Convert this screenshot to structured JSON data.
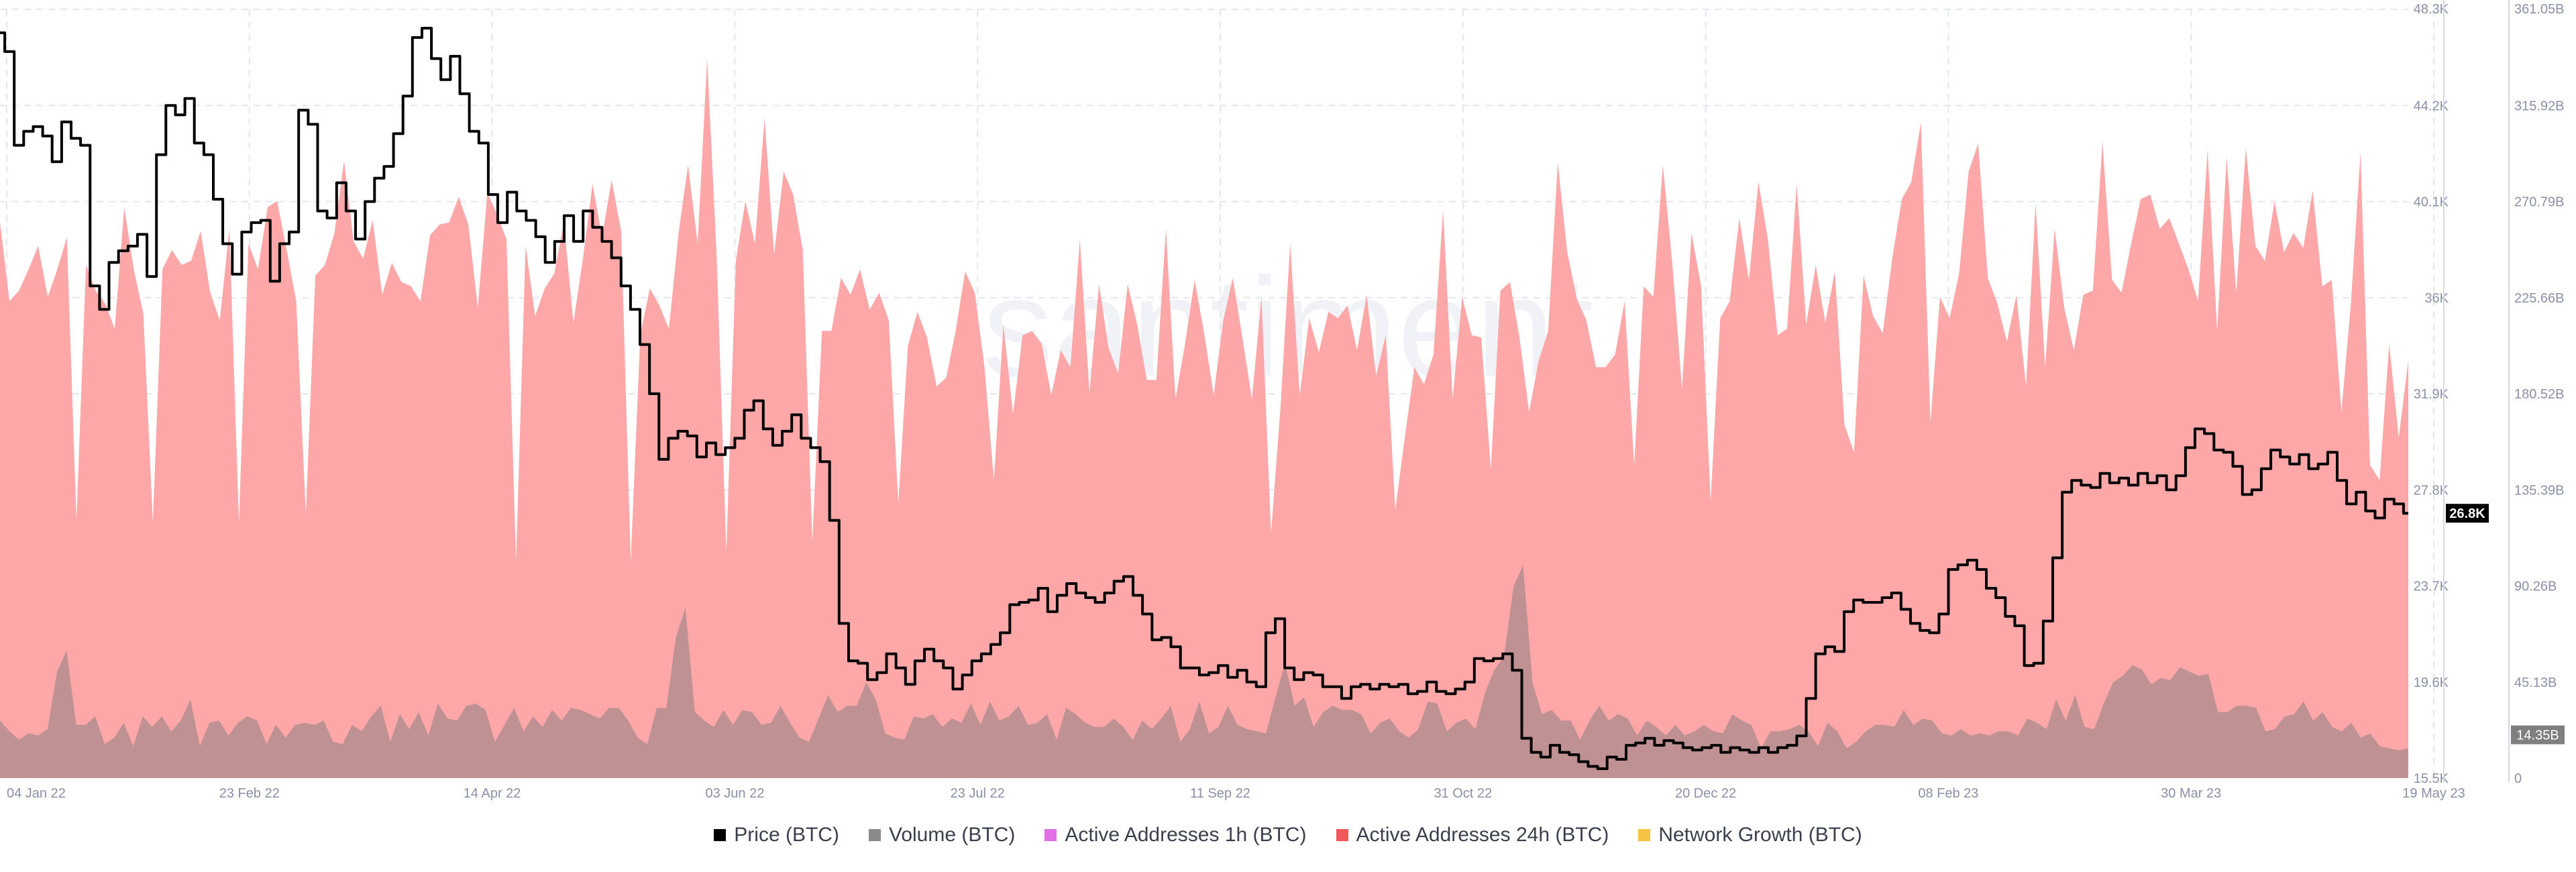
{
  "watermark": "santiment",
  "legend": [
    {
      "label": "Price (BTC)",
      "color": "#000000"
    },
    {
      "label": "Volume (BTC)",
      "color": "#8b8b8b"
    },
    {
      "label": "Active Addresses 1h (BTC)",
      "color": "#e26fe8"
    },
    {
      "label": "Active Addresses 24h (BTC)",
      "color": "#f0575a"
    },
    {
      "label": "Network Growth (BTC)",
      "color": "#f6c343"
    }
  ],
  "chart_data": {
    "type": "line",
    "x_ticks": [
      "04 Jan 22",
      "23 Feb 22",
      "14 Apr 22",
      "03 Jun 22",
      "23 Jul 22",
      "11 Sep 22",
      "31 Oct 22",
      "20 Dec 22",
      "08 Feb 23",
      "30 Mar 23",
      "19 May 23"
    ],
    "price_axis": {
      "ticks": [
        "48.3K",
        "44.2K",
        "40.1K",
        "36K",
        "31.9K",
        "27.8K",
        "23.7K",
        "19.6K",
        "15.5K"
      ],
      "min": 15.5,
      "max": 48.3,
      "unit": "K USD"
    },
    "volume_axis": {
      "ticks": [
        "361.05B",
        "315.92B",
        "270.79B",
        "225.66B",
        "180.52B",
        "135.39B",
        "90.26B",
        "45.13B",
        "0"
      ],
      "min": 0,
      "max": 361.05,
      "unit": "B"
    },
    "last_price_label": "26.8K",
    "last_volume_label": "14.35B",
    "series": [
      {
        "name": "Price (BTC)",
        "axis": "left",
        "x_start": "2022-01-01",
        "x_end": "2023-05-19",
        "values": [
          47.3,
          46.5,
          42.5,
          43.1,
          43.3,
          42.9,
          41.8,
          43.5,
          42.8,
          42.5,
          36.5,
          35.5,
          37.5,
          38.0,
          38.2,
          38.7,
          36.9,
          42.1,
          44.2,
          43.8,
          44.5,
          42.6,
          42.1,
          40.2,
          38.3,
          37.0,
          38.8,
          39.2,
          39.3,
          36.7,
          38.3,
          38.8,
          44.0,
          43.4,
          39.7,
          39.4,
          40.9,
          39.7,
          38.5,
          40.1,
          41.1,
          41.6,
          43.0,
          44.6,
          47.1,
          47.5,
          46.2,
          45.3,
          46.3,
          44.7,
          43.1,
          42.6,
          40.4,
          39.2,
          40.5,
          39.7,
          39.3,
          38.6,
          37.5,
          38.4,
          39.5,
          38.4,
          39.7,
          39.0,
          38.4,
          37.7,
          36.5,
          35.5,
          34.0,
          31.9,
          29.1,
          30.0,
          30.3,
          30.1,
          29.2,
          29.8,
          29.3,
          29.6,
          30.0,
          31.2,
          31.6,
          30.4,
          29.7,
          30.3,
          31.0,
          30.0,
          29.6,
          29.0,
          26.5,
          22.1,
          20.5,
          20.4,
          19.7,
          20.0,
          20.8,
          20.2,
          19.5,
          20.5,
          21.0,
          20.5,
          20.2,
          19.3,
          19.9,
          20.5,
          20.8,
          21.2,
          21.7,
          22.9,
          23.0,
          23.1,
          23.6,
          22.6,
          23.3,
          23.8,
          23.4,
          23.2,
          23.0,
          23.4,
          23.9,
          24.1,
          23.3,
          22.5,
          21.4,
          21.5,
          21.1,
          20.2,
          20.2,
          19.9,
          20.0,
          20.3,
          19.8,
          20.1,
          19.6,
          19.4,
          21.7,
          22.3,
          20.2,
          19.7,
          20.0,
          19.9,
          19.4,
          19.4,
          18.9,
          19.4,
          19.5,
          19.3,
          19.5,
          19.4,
          19.5,
          19.1,
          19.2,
          19.6,
          19.2,
          19.1,
          19.3,
          19.6,
          20.6,
          20.5,
          20.6,
          20.8,
          20.1,
          17.2,
          16.6,
          16.4,
          16.9,
          16.6,
          16.5,
          16.2,
          16.0,
          15.9,
          16.4,
          16.3,
          16.9,
          17.0,
          17.2,
          16.9,
          17.1,
          17.0,
          16.8,
          16.7,
          16.8,
          16.9,
          16.6,
          16.8,
          16.7,
          16.6,
          16.8,
          16.6,
          16.8,
          16.9,
          17.3,
          18.9,
          20.8,
          21.1,
          20.9,
          22.6,
          23.1,
          23.0,
          23.0,
          23.2,
          23.4,
          22.7,
          22.1,
          21.8,
          21.7,
          22.5,
          24.4,
          24.6,
          24.8,
          24.4,
          23.6,
          23.2,
          22.4,
          22.0,
          20.3,
          20.4,
          22.2,
          24.9,
          27.7,
          28.2,
          28.0,
          27.9,
          28.5,
          28.1,
          28.3,
          28.0,
          28.5,
          28.1,
          28.4,
          27.8,
          28.4,
          29.6,
          30.4,
          30.2,
          29.5,
          29.4,
          28.8,
          27.6,
          27.8,
          28.7,
          29.5,
          29.2,
          28.9,
          29.3,
          28.7,
          28.9,
          29.4,
          28.2,
          27.2,
          27.7,
          26.9,
          26.6,
          27.4,
          27.2,
          26.8
        ]
      },
      {
        "name": "Active Addresses 24h (BTC)",
        "axis": "right",
        "x_start": "2022-01-01",
        "x_end": "2023-05-19",
        "values": [
          261,
          224,
          229,
          239,
          250,
          226,
          239,
          254,
          121,
          241,
          229,
          223,
          211,
          268,
          239,
          218,
          120,
          239,
          248,
          241,
          243,
          257,
          228,
          215,
          258,
          120,
          251,
          239,
          268,
          271,
          248,
          224,
          124,
          236,
          241,
          256,
          290,
          252,
          244,
          262,
          227,
          242,
          233,
          231,
          224,
          255,
          260,
          261,
          273,
          260,
          221,
          275,
          265,
          253,
          102,
          250,
          217,
          230,
          237,
          261,
          214,
          244,
          279,
          254,
          281,
          257,
          102,
          208,
          230,
          222,
          211,
          256,
          288,
          251,
          338,
          244,
          106,
          243,
          271,
          251,
          310,
          246,
          285,
          274,
          248,
          111,
          210,
          210,
          235,
          227,
          239,
          220,
          228,
          215,
          129,
          203,
          219,
          207,
          184,
          188,
          210,
          238,
          228,
          194,
          140,
          213,
          171,
          208,
          210,
          204,
          180,
          201,
          193,
          253,
          181,
          232,
          202,
          190,
          232,
          213,
          187,
          187,
          258,
          178,
          204,
          234,
          209,
          180,
          215,
          235,
          207,
          178,
          226,
          115,
          175,
          251,
          180,
          216,
          200,
          219,
          216,
          222,
          201,
          227,
          189,
          208,
          126,
          160,
          193,
          185,
          199,
          267,
          178,
          226,
          208,
          207,
          145,
          229,
          233,
          207,
          172,
          196,
          210,
          289,
          247,
          225,
          215,
          193,
          193,
          199,
          224,
          147,
          231,
          226,
          288,
          241,
          183,
          256,
          231,
          130,
          216,
          224,
          263,
          234,
          280,
          253,
          208,
          211,
          279,
          213,
          241,
          214,
          238,
          166,
          153,
          236,
          217,
          209,
          244,
          272,
          280,
          308,
          167,
          226,
          216,
          237,
          285,
          298,
          235,
          223,
          205,
          227,
          184,
          270,
          193,
          258,
          221,
          201,
          227,
          229,
          299,
          234,
          228,
          251,
          272,
          274,
          258,
          263,
          251,
          239,
          224,
          295,
          210,
          292,
          228,
          296,
          250,
          243,
          271,
          247,
          256,
          249,
          276,
          231,
          234,
          172,
          223,
          294,
          147,
          140,
          204,
          160,
          196
        ]
      },
      {
        "name": "Volume (BTC)",
        "axis": "right",
        "x_start": "2022-01-01",
        "x_end": "2023-05-19",
        "values": [
          27,
          22,
          18,
          21,
          20,
          23,
          50,
          60,
          25,
          25,
          29,
          16,
          19,
          26,
          15,
          29,
          24,
          29,
          22,
          27,
          37,
          15,
          26,
          27,
          20,
          26,
          29,
          27,
          16,
          25,
          19,
          25,
          26,
          25,
          27,
          17,
          16,
          25,
          22,
          29,
          34,
          17,
          30,
          23,
          31,
          20,
          35,
          28,
          27,
          34,
          35,
          32,
          17,
          25,
          33,
          22,
          29,
          24,
          32,
          27,
          33,
          32,
          30,
          28,
          33,
          33,
          27,
          19,
          16,
          33,
          33,
          66,
          80,
          31,
          27,
          24,
          32,
          25,
          32,
          31,
          25,
          26,
          34,
          26,
          19,
          17,
          28,
          39,
          31,
          34,
          34,
          45,
          37,
          21,
          19,
          18,
          29,
          28,
          30,
          24,
          28,
          26,
          35,
          25,
          36,
          27,
          29,
          34,
          25,
          26,
          30,
          18,
          33,
          30,
          26,
          24,
          24,
          28,
          24,
          18,
          27,
          23,
          28,
          34,
          17,
          23,
          36,
          21,
          24,
          34,
          25,
          23,
          22,
          21,
          38,
          54,
          34,
          38,
          24,
          31,
          34,
          32,
          32,
          30,
          21,
          26,
          28,
          22,
          19,
          23,
          36,
          35,
          22,
          26,
          28,
          23,
          40,
          51,
          57,
          90,
          100,
          45,
          30,
          32,
          27,
          27,
          18,
          27,
          34,
          27,
          30,
          28,
          20,
          27,
          24,
          20,
          25,
          20,
          22,
          25,
          22,
          21,
          30,
          27,
          25,
          14,
          22,
          22,
          23,
          25,
          22,
          15,
          26,
          22,
          14,
          17,
          22,
          25,
          25,
          24,
          32,
          25,
          28,
          27,
          21,
          20,
          23,
          20,
          21,
          20,
          22,
          22,
          20,
          28,
          26,
          23,
          37,
          27,
          39,
          24,
          23,
          35,
          45,
          48,
          53,
          51,
          44,
          47,
          46,
          52,
          50,
          48,
          49,
          31,
          31,
          34,
          34,
          33,
          22,
          23,
          29,
          30,
          36,
          27,
          31,
          24,
          22,
          26,
          19,
          21,
          15,
          14,
          13,
          14
        ]
      }
    ]
  }
}
